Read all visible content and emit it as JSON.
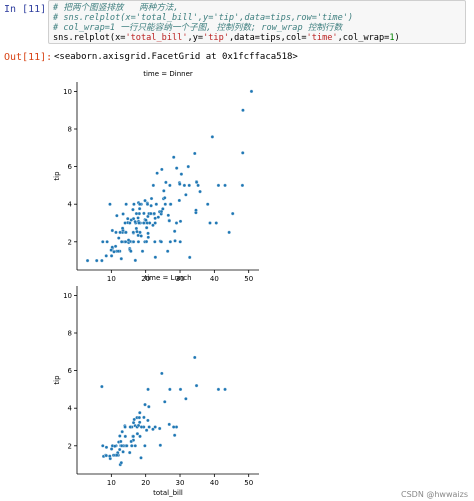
{
  "cell": {
    "in_prompt": "In  [11]:",
    "out_prompt": "Out[11]:",
    "line1": "# 把两个图竖排放   两种方法,",
    "line2": "# sns.relplot(x='total_bill',y='tip',data=tips,row='time')",
    "line3": "# col_wrap=1 一行只能容纳一个子图, 控制列数; row_wrap 控制行数",
    "line4_prefix": "sns.relplot(x=",
    "line4_s1": "'total_bill'",
    "line4_m1": ",y=",
    "line4_s2": "'tip'",
    "line4_m2": ",data=tips,col=",
    "line4_s3": "'time'",
    "line4_m3": ",col_wrap=",
    "line4_n": "1",
    "line4_end": ")",
    "output": "<seaborn.axisgrid.FacetGrid at 0x1fcffaca518>"
  },
  "watermark": "CSDN @hwwaizs",
  "chart_data": [
    {
      "type": "scatter",
      "title": "time = Dinner",
      "xlabel": "",
      "ylabel": "tip",
      "xlim": [
        0,
        53
      ],
      "ylim": [
        0.5,
        10.5
      ],
      "xticks": [
        10,
        20,
        30,
        40,
        50
      ],
      "yticks": [
        2,
        4,
        6,
        8,
        10
      ],
      "color": "#1f77b4",
      "points": [
        [
          3.07,
          1
        ],
        [
          5.75,
          1
        ],
        [
          7.25,
          1
        ],
        [
          8.77,
          2
        ],
        [
          10.07,
          1.25
        ],
        [
          10.33,
          1.67
        ],
        [
          10.34,
          1.66
        ],
        [
          10.27,
          1.71
        ],
        [
          11.59,
          1.5
        ],
        [
          12.46,
          1.5
        ],
        [
          12.9,
          1.1
        ],
        [
          13.0,
          2
        ],
        [
          13.27,
          2.5
        ],
        [
          13.81,
          2
        ],
        [
          14.07,
          2.5
        ],
        [
          14.15,
          2
        ],
        [
          14.31,
          4
        ],
        [
          14.78,
          3.23
        ],
        [
          14.83,
          3.02
        ],
        [
          15.04,
          1.96
        ],
        [
          15.36,
          1.64
        ],
        [
          15.42,
          1.57
        ],
        [
          15.69,
          1.5
        ],
        [
          15.81,
          3.16
        ],
        [
          16.0,
          2
        ],
        [
          16.29,
          3.71
        ],
        [
          16.31,
          2
        ],
        [
          16.47,
          3.23
        ],
        [
          16.58,
          4
        ],
        [
          16.99,
          1.01
        ],
        [
          17.07,
          3
        ],
        [
          17.29,
          2.71
        ],
        [
          17.46,
          2.54
        ],
        [
          17.78,
          3.27
        ],
        [
          17.81,
          2.34
        ],
        [
          17.92,
          4.08
        ],
        [
          18.15,
          3.5
        ],
        [
          18.24,
          3.76
        ],
        [
          18.29,
          3
        ],
        [
          18.35,
          2.5
        ],
        [
          18.43,
          3
        ],
        [
          18.69,
          2.31
        ],
        [
          18.71,
          4
        ],
        [
          19.08,
          1.5
        ],
        [
          19.49,
          3.51
        ],
        [
          19.65,
          3
        ],
        [
          19.77,
          2
        ],
        [
          19.82,
          3.18
        ],
        [
          20.08,
          3.15
        ],
        [
          20.29,
          2.75
        ],
        [
          20.45,
          3
        ],
        [
          20.65,
          3.35
        ],
        [
          20.69,
          2.45
        ],
        [
          20.76,
          2.24
        ],
        [
          20.9,
          3.5
        ],
        [
          21.01,
          3.5
        ],
        [
          21.16,
          3
        ],
        [
          21.58,
          3.92
        ],
        [
          21.7,
          4.3
        ],
        [
          22.12,
          2.88
        ],
        [
          22.23,
          5
        ],
        [
          22.42,
          3.48
        ],
        [
          22.49,
          3.5
        ],
        [
          22.67,
          2
        ],
        [
          22.75,
          3.25
        ],
        [
          22.82,
          1.18
        ],
        [
          23.1,
          4
        ],
        [
          23.33,
          5.65
        ],
        [
          23.68,
          3.31
        ],
        [
          24.06,
          3.6
        ],
        [
          24.27,
          2.03
        ],
        [
          24.52,
          3.48
        ],
        [
          24.55,
          2
        ],
        [
          24.59,
          3.61
        ],
        [
          25.0,
          3.75
        ],
        [
          25.21,
          4.29
        ],
        [
          25.29,
          4.71
        ],
        [
          25.56,
          4.34
        ],
        [
          25.89,
          5.16
        ],
        [
          26.41,
          1.5
        ],
        [
          26.59,
          3.41
        ],
        [
          26.86,
          3.14
        ],
        [
          26.88,
          3.12
        ],
        [
          27.05,
          5
        ],
        [
          27.18,
          2
        ],
        [
          27.2,
          4
        ],
        [
          27.28,
          4
        ],
        [
          28.17,
          6.5
        ],
        [
          28.44,
          2.56
        ],
        [
          28.55,
          2.05
        ],
        [
          28.97,
          3
        ],
        [
          29.03,
          5.92
        ],
        [
          29.8,
          4.2
        ],
        [
          29.85,
          5.14
        ],
        [
          29.93,
          5.07
        ],
        [
          30.06,
          2
        ],
        [
          30.14,
          3.09
        ],
        [
          30.4,
          5.6
        ],
        [
          31.27,
          5
        ],
        [
          31.71,
          4.5
        ],
        [
          32.4,
          6
        ],
        [
          32.68,
          5
        ],
        [
          32.83,
          1.17
        ],
        [
          34.3,
          6.7
        ],
        [
          34.63,
          3.55
        ],
        [
          34.65,
          3.68
        ],
        [
          34.81,
          5.2
        ],
        [
          35.26,
          5
        ],
        [
          35.83,
          4.67
        ],
        [
          38.07,
          4
        ],
        [
          38.73,
          3
        ],
        [
          39.42,
          7.58
        ],
        [
          40.55,
          3
        ],
        [
          41.19,
          5
        ],
        [
          43.11,
          5
        ],
        [
          44.3,
          2.5
        ],
        [
          45.35,
          3.5
        ],
        [
          48.17,
          5
        ],
        [
          48.27,
          6.73
        ],
        [
          48.33,
          9
        ],
        [
          50.81,
          10
        ],
        [
          16.45,
          2.47
        ],
        [
          13.42,
          3.48
        ],
        [
          17.89,
          2
        ],
        [
          19.44,
          3
        ],
        [
          21.5,
          3.5
        ],
        [
          15.48,
          2.02
        ],
        [
          12.03,
          1.5
        ],
        [
          11.24,
          1.76
        ],
        [
          13.39,
          2.61
        ],
        [
          12.16,
          2.2
        ],
        [
          9.94,
          1.56
        ],
        [
          20.23,
          2.01
        ],
        [
          15.01,
          2.09
        ],
        [
          17.92,
          3.08
        ],
        [
          14.26,
          2.5
        ],
        [
          13.28,
          2.72
        ],
        [
          16.93,
          3.07
        ],
        [
          11.35,
          2.5
        ],
        [
          15.38,
          3
        ],
        [
          24.71,
          5.85
        ],
        [
          11.61,
          3.39
        ],
        [
          10.77,
          1.47
        ],
        [
          9.6,
          4
        ],
        [
          20.49,
          4.06
        ],
        [
          18.28,
          4
        ],
        [
          8.51,
          1.25
        ],
        [
          22.76,
          3
        ],
        [
          19.81,
          4.19
        ],
        [
          13.03,
          2
        ],
        [
          18.04,
          3
        ],
        [
          12.54,
          2.5
        ],
        [
          10.29,
          2.6
        ],
        [
          34.83,
          5.17
        ],
        [
          7.51,
          2
        ],
        [
          14.0,
          3
        ],
        [
          25.71,
          4
        ],
        [
          17.31,
          3.5
        ],
        [
          16.4,
          2.5
        ],
        [
          20.53,
          4
        ],
        [
          16.47,
          2
        ],
        [
          26.88,
          3.12
        ]
      ]
    },
    {
      "type": "scatter",
      "title": "time = Lunch",
      "xlabel": "total_bill",
      "ylabel": "tip",
      "xlim": [
        0,
        53
      ],
      "ylim": [
        0.5,
        10.5
      ],
      "xticks": [
        10,
        20,
        30,
        40,
        50
      ],
      "yticks": [
        2,
        4,
        6,
        8,
        10
      ],
      "color": "#1f77b4",
      "points": [
        [
          7.51,
          2
        ],
        [
          7.74,
          1.44
        ],
        [
          8.35,
          1.5
        ],
        [
          8.52,
          1.48
        ],
        [
          9.68,
          1.32
        ],
        [
          10.07,
          1.83
        ],
        [
          10.65,
          1.5
        ],
        [
          11.17,
          1.5
        ],
        [
          11.38,
          2
        ],
        [
          12.03,
          1.5
        ],
        [
          12.16,
          2.2
        ],
        [
          12.43,
          1.8
        ],
        [
          12.48,
          2.52
        ],
        [
          12.74,
          2.01
        ],
        [
          13.0,
          2
        ],
        [
          13.03,
          2
        ],
        [
          13.13,
          2
        ],
        [
          13.16,
          2.75
        ],
        [
          13.37,
          2
        ],
        [
          13.42,
          1.68
        ],
        [
          13.81,
          2
        ],
        [
          13.94,
          3.06
        ],
        [
          14.0,
          3
        ],
        [
          14.07,
          2.5
        ],
        [
          14.52,
          2
        ],
        [
          15.69,
          3
        ],
        [
          15.98,
          3
        ],
        [
          16.0,
          2
        ],
        [
          16.27,
          2.5
        ],
        [
          16.43,
          2.3
        ],
        [
          16.66,
          3.4
        ],
        [
          16.93,
          3.07
        ],
        [
          17.47,
          3.5
        ],
        [
          17.51,
          3
        ],
        [
          17.59,
          2.64
        ],
        [
          17.92,
          3.08
        ],
        [
          18.26,
          3.25
        ],
        [
          18.29,
          3.76
        ],
        [
          18.35,
          2.5
        ],
        [
          18.64,
          1.36
        ],
        [
          19.44,
          3
        ],
        [
          19.49,
          3.51
        ],
        [
          19.77,
          2
        ],
        [
          20.27,
          2.83
        ],
        [
          20.92,
          4.08
        ],
        [
          20.69,
          5.0
        ],
        [
          21.01,
          3
        ],
        [
          22.12,
          2.88
        ],
        [
          22.76,
          3
        ],
        [
          24.08,
          2.92
        ],
        [
          24.71,
          5.85
        ],
        [
          25.56,
          4.34
        ],
        [
          26.86,
          3.14
        ],
        [
          27.05,
          5
        ],
        [
          28.44,
          2.56
        ],
        [
          28.97,
          3
        ],
        [
          30.14,
          5.0
        ],
        [
          31.71,
          4.5
        ],
        [
          34.3,
          6.7
        ],
        [
          34.81,
          5.2
        ],
        [
          41.19,
          5
        ],
        [
          43.11,
          5
        ],
        [
          10.34,
          2
        ],
        [
          12.6,
          1
        ],
        [
          13.51,
          2
        ],
        [
          15.36,
          1.64
        ],
        [
          16.97,
          2
        ],
        [
          15.53,
          3
        ],
        [
          15.95,
          2
        ],
        [
          10.33,
          2
        ],
        [
          11.02,
          1.98
        ],
        [
          12.76,
          2.23
        ],
        [
          15.77,
          2.23
        ],
        [
          9.55,
          1.45
        ],
        [
          11.87,
          1.63
        ],
        [
          8.58,
          1.92
        ],
        [
          14.15,
          2
        ],
        [
          14.48,
          2
        ],
        [
          13.0,
          2
        ],
        [
          16.47,
          3.23
        ],
        [
          19.81,
          4.19
        ],
        [
          28.15,
          3
        ],
        [
          24.27,
          2.03
        ],
        [
          12.9,
          1.1
        ],
        [
          20.65,
          3.35
        ],
        [
          18.15,
          3.5
        ],
        [
          7.25,
          5.15
        ],
        [
          16.4,
          2.5
        ],
        [
          18.78,
          3
        ],
        [
          11.59,
          1.5
        ]
      ]
    }
  ]
}
